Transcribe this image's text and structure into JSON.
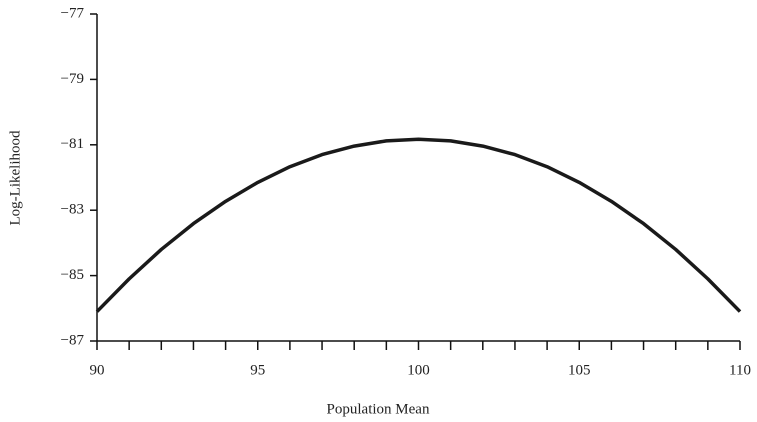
{
  "chart_data": {
    "type": "line",
    "x_label": "Population Mean",
    "y_label": "Log-Likelihood",
    "x": [
      90,
      91,
      92,
      93,
      94,
      95,
      96,
      97,
      98,
      99,
      100,
      101,
      102,
      103,
      104,
      105,
      106,
      107,
      108,
      109,
      110
    ],
    "series": [
      {
        "color": "#1a1a1a",
        "values": [
          -86.1,
          -85.1,
          -84.2,
          -83.41,
          -82.73,
          -82.15,
          -81.67,
          -81.3,
          -81.04,
          -80.88,
          -80.83,
          -80.88,
          -81.04,
          -81.3,
          -81.67,
          -82.15,
          -82.73,
          -83.41,
          -84.2,
          -85.1,
          -86.1
        ]
      }
    ],
    "xlim": [
      90,
      110
    ],
    "xticks": [
      90,
      95,
      100,
      105,
      110
    ],
    "xminorticks": [
      91,
      92,
      93,
      94,
      96,
      97,
      98,
      99,
      101,
      102,
      103,
      104,
      106,
      107,
      108,
      109
    ],
    "ylim": [
      -87,
      -77
    ],
    "yticks": [
      {
        "value": -87,
        "label": "−87"
      },
      {
        "value": -85,
        "label": "−85"
      },
      {
        "value": -83,
        "label": "−83"
      },
      {
        "value": -81,
        "label": "−81"
      },
      {
        "value": -79,
        "label": "−79"
      },
      {
        "value": -77,
        "label": "−77"
      }
    ],
    "grid": false
  }
}
